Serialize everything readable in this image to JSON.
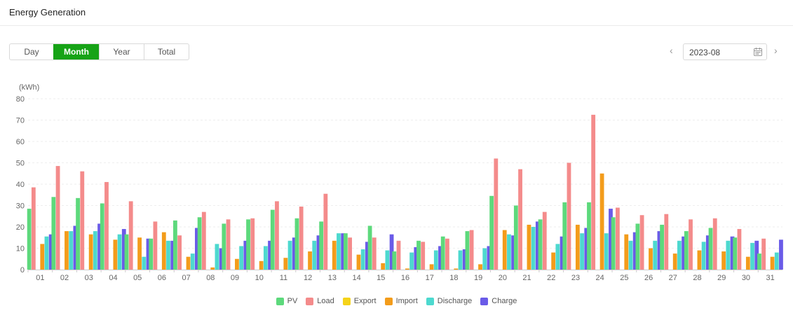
{
  "header": {
    "title": "Energy Generation"
  },
  "tabs": [
    {
      "label": "Day",
      "active": false
    },
    {
      "label": "Month",
      "active": true
    },
    {
      "label": "Year",
      "active": false
    },
    {
      "label": "Total",
      "active": false
    }
  ],
  "date_picker": {
    "value": "2023-08",
    "prev_icon": "chevron-left-icon",
    "next_icon": "chevron-right-icon",
    "icon": "calendar-icon"
  },
  "colors": {
    "accent": "#16a316"
  },
  "chart_data": {
    "type": "bar",
    "title": "",
    "unit_label": "(kWh)",
    "xlabel": "",
    "ylabel": "",
    "ylim": [
      0,
      80
    ],
    "yticks": [
      0,
      10,
      20,
      30,
      40,
      50,
      60,
      70,
      80
    ],
    "grid": true,
    "legend_position": "bottom",
    "categories": [
      "01",
      "02",
      "03",
      "04",
      "05",
      "06",
      "07",
      "08",
      "09",
      "10",
      "11",
      "12",
      "13",
      "14",
      "15",
      "16",
      "17",
      "18",
      "19",
      "20",
      "21",
      "22",
      "23",
      "24",
      "25",
      "26",
      "27",
      "28",
      "29",
      "30",
      "31"
    ],
    "series": [
      {
        "name": "PV",
        "color": "#5dd97c",
        "values": [
          28.5,
          34,
          33.5,
          31,
          16.5,
          14.5,
          23,
          24.5,
          21.5,
          23.5,
          28,
          24,
          22.5,
          17,
          20.5,
          8.5,
          13.5,
          15.5,
          18,
          34.5,
          30,
          23.5,
          31.5,
          31.5,
          24.5,
          21.5,
          21,
          18,
          19.5,
          15,
          7.5
        ]
      },
      {
        "name": "Load",
        "color": "#f48b8b",
        "values": [
          38.5,
          48.5,
          46,
          41,
          32,
          22.5,
          16,
          27,
          23.5,
          24,
          32,
          29.5,
          35.5,
          15,
          15,
          13.5,
          13,
          14.5,
          18.5,
          52,
          47,
          27,
          50,
          72.5,
          29,
          25.5,
          26,
          23.5,
          24,
          19,
          14.5
        ]
      },
      {
        "name": "Export",
        "color": "#f5d31a",
        "values": [
          0,
          0,
          0,
          0,
          0,
          0,
          0,
          0,
          0,
          0,
          0,
          0,
          0,
          0,
          0,
          0,
          0,
          0,
          0,
          0,
          0,
          0,
          0,
          0,
          0,
          0,
          0,
          0,
          0,
          0,
          0
        ]
      },
      {
        "name": "Import",
        "color": "#f39c1b",
        "values": [
          12,
          18,
          16.5,
          14,
          15,
          17.5,
          6,
          1,
          5,
          4,
          5.5,
          8.5,
          13.5,
          7,
          3,
          0.5,
          2.5,
          0.5,
          2.5,
          18.5,
          21,
          8,
          21,
          45,
          16.5,
          10,
          7.5,
          9,
          8.5,
          6,
          6
        ]
      },
      {
        "name": "Discharge",
        "color": "#4dd9cf",
        "values": [
          15.5,
          18,
          18,
          16.5,
          6,
          13.5,
          7.5,
          12,
          11,
          11,
          13.5,
          13.5,
          17,
          9.5,
          9,
          8,
          9,
          9,
          10,
          16.5,
          20,
          12,
          17,
          17,
          13.5,
          13.5,
          13.5,
          13,
          13.5,
          12.5,
          8
        ]
      },
      {
        "name": "Charge",
        "color": "#6a5be8",
        "values": [
          16.5,
          20.5,
          21.5,
          19,
          14.5,
          13.5,
          19.5,
          10,
          13.5,
          13.5,
          15,
          16,
          17,
          13,
          16.5,
          10.5,
          11,
          9.5,
          11,
          16,
          22.5,
          15.5,
          19.5,
          28.5,
          17.5,
          18,
          15.5,
          16,
          15.5,
          13.5,
          14
        ]
      }
    ]
  }
}
